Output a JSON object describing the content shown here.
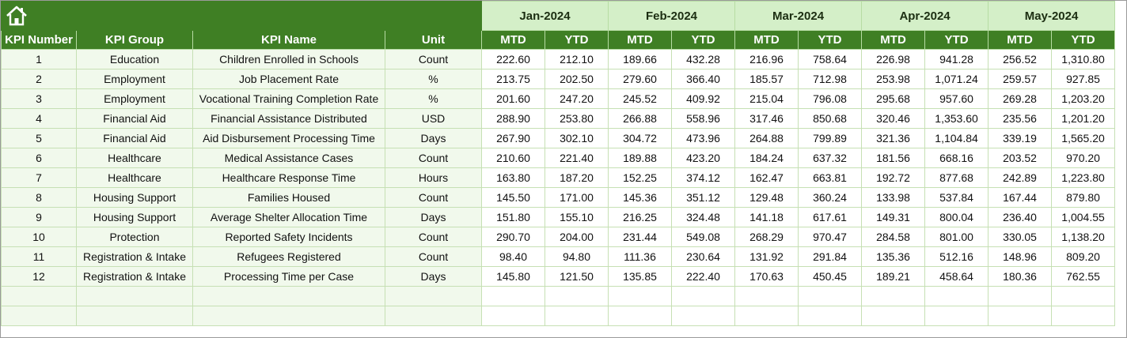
{
  "header": {
    "columns": [
      "KPI Number",
      "KPI Group",
      "KPI Name",
      "Unit"
    ],
    "months": [
      "Jan-2024",
      "Feb-2024",
      "Mar-2024",
      "Apr-2024",
      "May-2024"
    ],
    "periods": [
      "MTD",
      "YTD"
    ]
  },
  "table": {
    "rows": [
      [
        1,
        "Education",
        "Children Enrolled in Schools",
        "Count",
        "222.60",
        "212.10",
        "189.66",
        "432.28",
        "216.96",
        "758.64",
        "226.98",
        "941.28",
        "256.52",
        "1,310.80"
      ],
      [
        2,
        "Employment",
        "Job Placement Rate",
        "%",
        "213.75",
        "202.50",
        "279.60",
        "366.40",
        "185.57",
        "712.98",
        "253.98",
        "1,071.24",
        "259.57",
        "927.85"
      ],
      [
        3,
        "Employment",
        "Vocational Training Completion Rate",
        "%",
        "201.60",
        "247.20",
        "245.52",
        "409.92",
        "215.04",
        "796.08",
        "295.68",
        "957.60",
        "269.28",
        "1,203.20"
      ],
      [
        4,
        "Financial Aid",
        "Financial Assistance Distributed",
        "USD",
        "288.90",
        "253.80",
        "266.88",
        "558.96",
        "317.46",
        "850.68",
        "320.46",
        "1,353.60",
        "235.56",
        "1,201.20"
      ],
      [
        5,
        "Financial Aid",
        "Aid Disbursement Processing Time",
        "Days",
        "267.90",
        "302.10",
        "304.72",
        "473.96",
        "264.88",
        "799.89",
        "321.36",
        "1,104.84",
        "339.19",
        "1,565.20"
      ],
      [
        6,
        "Healthcare",
        "Medical Assistance Cases",
        "Count",
        "210.60",
        "221.40",
        "189.88",
        "423.20",
        "184.24",
        "637.32",
        "181.56",
        "668.16",
        "203.52",
        "970.20"
      ],
      [
        7,
        "Healthcare",
        "Healthcare Response Time",
        "Hours",
        "163.80",
        "187.20",
        "152.25",
        "374.12",
        "162.47",
        "663.81",
        "192.72",
        "877.68",
        "242.89",
        "1,223.80"
      ],
      [
        8,
        "Housing Support",
        "Families Housed",
        "Count",
        "145.50",
        "171.00",
        "145.36",
        "351.12",
        "129.48",
        "360.24",
        "133.98",
        "537.84",
        "167.44",
        "879.80"
      ],
      [
        9,
        "Housing Support",
        "Average Shelter Allocation Time",
        "Days",
        "151.80",
        "155.10",
        "216.25",
        "324.48",
        "141.18",
        "617.61",
        "149.31",
        "800.04",
        "236.40",
        "1,004.55"
      ],
      [
        10,
        "Protection",
        "Reported Safety Incidents",
        "Count",
        "290.70",
        "204.00",
        "231.44",
        "549.08",
        "268.29",
        "970.47",
        "284.58",
        "801.00",
        "330.05",
        "1,138.20"
      ],
      [
        11,
        "Registration & Intake",
        "Refugees Registered",
        "Count",
        "98.40",
        "94.80",
        "111.36",
        "230.64",
        "131.92",
        "291.84",
        "135.36",
        "512.16",
        "148.96",
        "809.20"
      ],
      [
        12,
        "Registration & Intake",
        "Processing Time per Case",
        "Days",
        "145.80",
        "121.50",
        "135.85",
        "222.40",
        "170.63",
        "450.45",
        "189.21",
        "458.64",
        "180.36",
        "762.55"
      ]
    ]
  }
}
